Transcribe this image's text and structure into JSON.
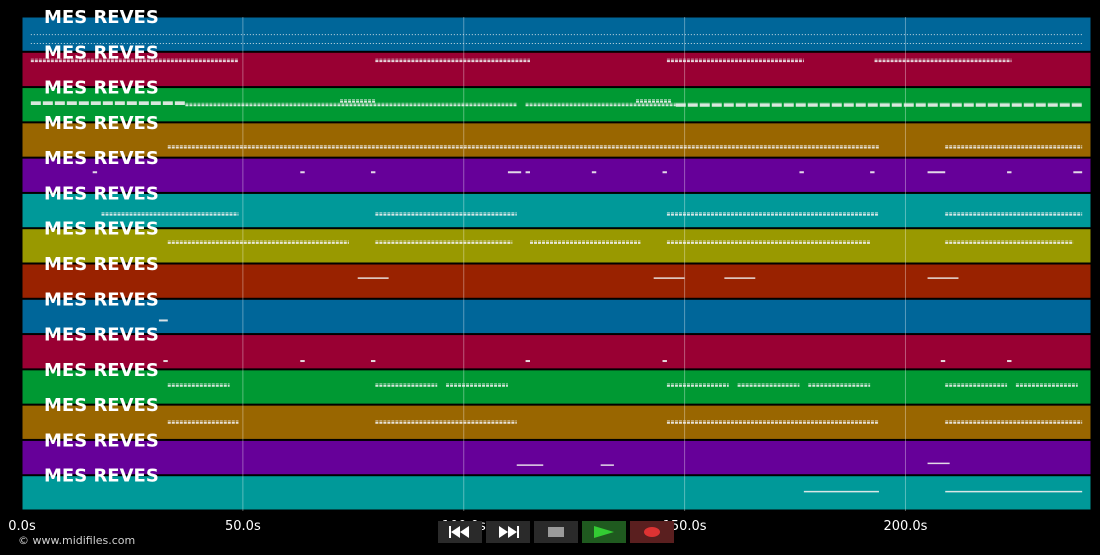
{
  "track_label": "MES REVES",
  "tracks": [
    {
      "color": "#006699",
      "notes": [
        [
          2,
          240,
          0.5,
          "dense"
        ],
        [
          2,
          240,
          0.75,
          "dense"
        ]
      ]
    },
    {
      "color": "#990033",
      "notes": [
        [
          2,
          49,
          0.25,
          "seg"
        ],
        [
          80,
          115,
          0.25,
          "seg"
        ],
        [
          146,
          177,
          0.25,
          "seg"
        ],
        [
          193,
          224,
          0.25,
          "seg"
        ]
      ]
    },
    {
      "color": "#009933",
      "notes": [
        [
          2,
          37,
          0.45,
          "thick"
        ],
        [
          37,
          112,
          0.5,
          "seg"
        ],
        [
          114,
          148,
          0.5,
          "seg"
        ],
        [
          148,
          240,
          0.5,
          "thick"
        ],
        [
          72,
          80,
          0.4,
          "seg"
        ],
        [
          139,
          147,
          0.4,
          "seg"
        ]
      ]
    },
    {
      "color": "#996600",
      "notes": [
        [
          33,
          194,
          0.7,
          "seg"
        ],
        [
          209,
          240,
          0.7,
          "seg"
        ]
      ]
    },
    {
      "color": "#660099",
      "notes": [
        [
          16,
          17,
          0.4,
          "dot"
        ],
        [
          63,
          64,
          0.4,
          "dot"
        ],
        [
          79,
          80,
          0.4,
          "dot"
        ],
        [
          110,
          113,
          0.4,
          "dot"
        ],
        [
          114,
          115,
          0.4,
          "dot"
        ],
        [
          129,
          130,
          0.4,
          "dot"
        ],
        [
          145,
          146,
          0.4,
          "dot"
        ],
        [
          176,
          177,
          0.4,
          "dot"
        ],
        [
          192,
          193,
          0.4,
          "dot"
        ],
        [
          205,
          209,
          0.4,
          "dot"
        ],
        [
          223,
          224,
          0.4,
          "dot"
        ],
        [
          238,
          240,
          0.4,
          "dot"
        ]
      ]
    },
    {
      "color": "#009999",
      "notes": [
        [
          18,
          49,
          0.6,
          "seg"
        ],
        [
          80,
          112,
          0.6,
          "seg"
        ],
        [
          146,
          194,
          0.6,
          "seg"
        ],
        [
          209,
          240,
          0.6,
          "seg"
        ]
      ]
    },
    {
      "color": "#999900",
      "notes": [
        [
          33,
          74,
          0.4,
          "seg"
        ],
        [
          80,
          111,
          0.4,
          "seg"
        ],
        [
          115,
          140,
          0.4,
          "seg"
        ],
        [
          146,
          192,
          0.4,
          "seg"
        ],
        [
          209,
          238,
          0.4,
          "seg"
        ]
      ]
    },
    {
      "color": "#992200",
      "notes": [
        [
          76,
          83,
          0.4,
          "line"
        ],
        [
          143,
          150,
          0.4,
          "line"
        ],
        [
          159,
          166,
          0.4,
          "line"
        ],
        [
          205,
          212,
          0.4,
          "line"
        ]
      ]
    },
    {
      "color": "#006699",
      "notes": [
        [
          31,
          33,
          0.6,
          "dot"
        ]
      ]
    },
    {
      "color": "#990033",
      "notes": [
        [
          32,
          33,
          0.75,
          "dot"
        ],
        [
          63,
          64,
          0.75,
          "dot"
        ],
        [
          79,
          80,
          0.75,
          "dot"
        ],
        [
          114,
          115,
          0.75,
          "dot"
        ],
        [
          145,
          146,
          0.75,
          "dot"
        ],
        [
          208,
          209,
          0.75,
          "dot"
        ],
        [
          223,
          224,
          0.75,
          "dot"
        ]
      ]
    },
    {
      "color": "#009933",
      "notes": [
        [
          33,
          47,
          0.45,
          "seg"
        ],
        [
          80,
          94,
          0.45,
          "seg"
        ],
        [
          96,
          110,
          0.45,
          "seg"
        ],
        [
          146,
          160,
          0.45,
          "seg"
        ],
        [
          162,
          176,
          0.45,
          "seg"
        ],
        [
          178,
          192,
          0.45,
          "seg"
        ],
        [
          209,
          223,
          0.45,
          "seg"
        ],
        [
          225,
          239,
          0.45,
          "seg"
        ]
      ]
    },
    {
      "color": "#996600",
      "notes": [
        [
          33,
          49,
          0.5,
          "seg"
        ],
        [
          80,
          112,
          0.5,
          "seg"
        ],
        [
          146,
          194,
          0.5,
          "seg"
        ],
        [
          209,
          240,
          0.5,
          "seg"
        ]
      ]
    },
    {
      "color": "#660099",
      "notes": [
        [
          112,
          118,
          0.7,
          "line"
        ],
        [
          131,
          134,
          0.7,
          "line"
        ],
        [
          205,
          210,
          0.65,
          "line"
        ]
      ]
    },
    {
      "color": "#009999",
      "notes": [
        [
          177,
          194,
          0.45,
          "line"
        ],
        [
          209,
          240,
          0.45,
          "line"
        ]
      ]
    }
  ],
  "time_axis": {
    "max": 242,
    "ticks": [
      {
        "value": 0,
        "label": "0.0s"
      },
      {
        "value": 50,
        "label": "50.0s"
      },
      {
        "value": 100,
        "label": "100.0s"
      },
      {
        "value": 150,
        "label": "150.0s"
      },
      {
        "value": 200,
        "label": "200.0s"
      }
    ]
  },
  "controls": {
    "rewind": "rewind-icon",
    "fast_forward": "fast-forward-icon",
    "stop": "stop-icon",
    "play": "play-icon",
    "record": "record-icon"
  },
  "copyright": "© www.midifiles.com"
}
